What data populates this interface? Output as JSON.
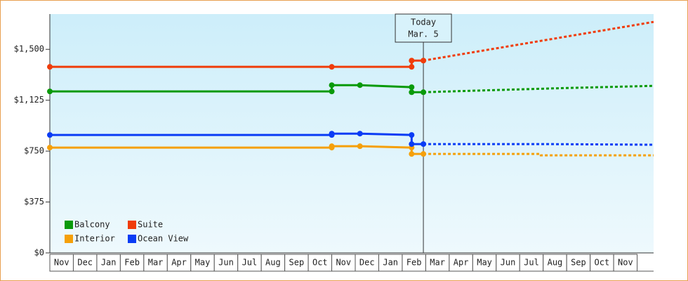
{
  "chart_data": {
    "type": "line",
    "xlim": [
      0,
      25.7
    ],
    "ylim": [
      0,
      1760
    ],
    "yticks": [
      {
        "value": 0,
        "label": "$0"
      },
      {
        "value": 375,
        "label": "$375"
      },
      {
        "value": 750,
        "label": "$750"
      },
      {
        "value": 1125,
        "label": "$1,125"
      },
      {
        "value": 1500,
        "label": "$1,500"
      }
    ],
    "xticks": [
      {
        "value": 0,
        "label": "Nov"
      },
      {
        "value": 1,
        "label": "Dec"
      },
      {
        "value": 2,
        "label": "Jan"
      },
      {
        "value": 3,
        "label": "Feb"
      },
      {
        "value": 4,
        "label": "Mar"
      },
      {
        "value": 5,
        "label": "Apr"
      },
      {
        "value": 6,
        "label": "May"
      },
      {
        "value": 7,
        "label": "Jun"
      },
      {
        "value": 8,
        "label": "Jul"
      },
      {
        "value": 9,
        "label": "Aug"
      },
      {
        "value": 10,
        "label": "Sep"
      },
      {
        "value": 11,
        "label": "Oct"
      },
      {
        "value": 12,
        "label": "Nov"
      },
      {
        "value": 13,
        "label": "Dec"
      },
      {
        "value": 14,
        "label": "Jan"
      },
      {
        "value": 15,
        "label": "Feb"
      },
      {
        "value": 16,
        "label": "Mar"
      },
      {
        "value": 17,
        "label": "Apr"
      },
      {
        "value": 18,
        "label": "May"
      },
      {
        "value": 19,
        "label": "Jun"
      },
      {
        "value": 20,
        "label": "Jul"
      },
      {
        "value": 21,
        "label": "Aug"
      },
      {
        "value": 22,
        "label": "Sep"
      },
      {
        "value": 23,
        "label": "Oct"
      },
      {
        "value": 24,
        "label": "Nov"
      }
    ],
    "annotation": {
      "x": 15.9,
      "lines": [
        "Today",
        "Mar. 5"
      ]
    },
    "legend": "lower left",
    "series": [
      {
        "name": "Balcony",
        "color": "#0a9a0a",
        "x": [
          0,
          12,
          12,
          13.2,
          15.4,
          15.4,
          15.9
        ],
        "values": [
          1190,
          1190,
          1236,
          1236,
          1221,
          1184,
          1184
        ],
        "forecast": {
          "x": [
            15.9,
            18,
            20,
            22,
            25.7
          ],
          "values": [
            1184,
            1195,
            1205,
            1215,
            1231
          ]
        }
      },
      {
        "name": "Suite",
        "color": "#f03c0a",
        "x": [
          0,
          12,
          15.4,
          15.4,
          15.9
        ],
        "values": [
          1371,
          1371,
          1371,
          1417,
          1417
        ],
        "forecast": {
          "x": [
            15.9,
            25.7
          ],
          "values": [
            1417,
            1702
          ]
        }
      },
      {
        "name": "Interior",
        "color": "#f5a00a",
        "x": [
          0,
          12,
          12,
          13.2,
          15.4,
          15.4,
          15.9
        ],
        "values": [
          776,
          776,
          786,
          786,
          776,
          729,
          729
        ],
        "forecast": {
          "x": [
            15.9,
            20.9,
            20.9,
            25.7
          ],
          "values": [
            729,
            729,
            719,
            719
          ]
        }
      },
      {
        "name": "Ocean View",
        "color": "#0a3cf5",
        "x": [
          0,
          12,
          12,
          13.2,
          15.4,
          15.4,
          15.9
        ],
        "values": [
          869,
          869,
          879,
          879,
          869,
          802,
          802
        ],
        "forecast": {
          "x": [
            15.9,
            20.9,
            25.7
          ],
          "values": [
            802,
            802,
            797
          ]
        }
      }
    ]
  }
}
